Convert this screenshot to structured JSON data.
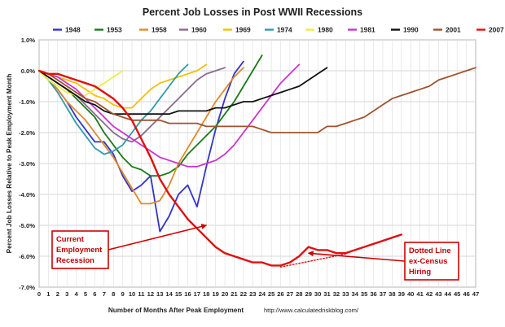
{
  "chart_data": {
    "type": "line",
    "title": "Percent Job Losses in Post WWII Recessions",
    "xlabel": "Number of Months After Peak Employment",
    "ylabel": "Percent Job Losses Relative to Peak Employment Month",
    "credit": "http://www.calculatedriskblog.com/",
    "xlim": [
      0,
      47
    ],
    "ylim": [
      -7.0,
      1.0
    ],
    "x_ticks": [
      0,
      1,
      2,
      3,
      4,
      5,
      6,
      7,
      8,
      9,
      10,
      11,
      12,
      13,
      14,
      15,
      16,
      17,
      18,
      19,
      20,
      21,
      22,
      23,
      24,
      25,
      26,
      27,
      28,
      29,
      30,
      31,
      32,
      33,
      34,
      35,
      36,
      37,
      38,
      39,
      40,
      41,
      42,
      43,
      44,
      45,
      46,
      47
    ],
    "y_ticks": [
      {
        "value": 1,
        "label": "1.0%"
      },
      {
        "value": 0,
        "label": "0.0%"
      },
      {
        "value": -1,
        "label": "-1.0%"
      },
      {
        "value": -2,
        "label": "-2.0%"
      },
      {
        "value": -3,
        "label": "-3.0%"
      },
      {
        "value": -4,
        "label": "-4.0%"
      },
      {
        "value": -5,
        "label": "-5.0%"
      },
      {
        "value": -6,
        "label": "-6.0%"
      },
      {
        "value": -7,
        "label": "-7.0%"
      }
    ],
    "grid": true,
    "legend_position": "top",
    "series": [
      {
        "name": "1948",
        "color": "#3333cc",
        "values": [
          0,
          -0.3,
          -0.6,
          -1.0,
          -1.5,
          -1.9,
          -2.3,
          -2.3,
          -2.7,
          -3.4,
          -3.9,
          -3.7,
          -3.4,
          -5.2,
          -4.7,
          -4.0,
          -3.7,
          -4.4,
          -3.1,
          -1.9,
          -0.9,
          -0.1,
          0.3
        ]
      },
      {
        "name": "1953",
        "color": "#1a7a1a",
        "values": [
          0,
          -0.2,
          -0.4,
          -0.6,
          -0.9,
          -1.2,
          -1.5,
          -2.0,
          -2.4,
          -2.8,
          -3.1,
          -3.2,
          -3.4,
          -3.4,
          -3.3,
          -3.1,
          -2.7,
          -2.4,
          -2.1,
          -1.8,
          -1.4,
          -1.0,
          -0.5,
          0.0,
          0.5
        ]
      },
      {
        "name": "1958",
        "color": "#e08a2a",
        "values": [
          0,
          -0.3,
          -0.6,
          -1.0,
          -1.3,
          -1.6,
          -2.0,
          -2.4,
          -2.8,
          -3.3,
          -3.8,
          -4.3,
          -4.3,
          -4.2,
          -3.7,
          -3.0,
          -2.5,
          -2.0,
          -1.5,
          -1.0,
          -0.6,
          -0.2,
          0.1
        ]
      },
      {
        "name": "1960",
        "color": "#8a6a8e",
        "values": [
          0,
          -0.2,
          -0.4,
          -0.6,
          -0.8,
          -1.1,
          -1.4,
          -1.7,
          -2.0,
          -2.2,
          -2.3,
          -2.1,
          -1.8,
          -1.5,
          -1.2,
          -0.9,
          -0.6,
          -0.3,
          -0.1,
          0.0,
          0.1
        ]
      },
      {
        "name": "1969",
        "color": "#f5c000",
        "values": [
          0,
          -0.1,
          -0.2,
          -0.3,
          -0.4,
          -0.6,
          -0.8,
          -0.9,
          -1.1,
          -1.2,
          -1.2,
          -0.9,
          -0.6,
          -0.4,
          -0.3,
          -0.2,
          -0.1,
          0.0,
          0.2
        ]
      },
      {
        "name": "1974",
        "color": "#3399aa",
        "values": [
          0,
          -0.3,
          -0.7,
          -1.2,
          -1.7,
          -2.1,
          -2.5,
          -2.7,
          -2.6,
          -2.4,
          -2.0,
          -1.6,
          -1.3,
          -0.9,
          -0.5,
          -0.1,
          0.2
        ]
      },
      {
        "name": "1980",
        "color": "#eeee44",
        "values": [
          0,
          -0.3,
          -0.5,
          -0.7,
          -0.8,
          -0.8,
          -0.6,
          -0.4,
          -0.2,
          0.0
        ]
      },
      {
        "name": "1981",
        "color": "#cc33cc",
        "values": [
          0,
          -0.1,
          -0.2,
          -0.4,
          -0.6,
          -0.9,
          -1.2,
          -1.5,
          -1.8,
          -2.0,
          -2.2,
          -2.4,
          -2.6,
          -2.8,
          -2.9,
          -3.0,
          -3.1,
          -3.1,
          -3.0,
          -2.9,
          -2.7,
          -2.4,
          -2.0,
          -1.6,
          -1.2,
          -0.8,
          -0.4,
          -0.1,
          0.2
        ]
      },
      {
        "name": "1990",
        "color": "#111111",
        "values": [
          0,
          -0.2,
          -0.4,
          -0.6,
          -0.8,
          -1.0,
          -1.1,
          -1.3,
          -1.4,
          -1.4,
          -1.4,
          -1.4,
          -1.4,
          -1.4,
          -1.4,
          -1.3,
          -1.3,
          -1.3,
          -1.3,
          -1.2,
          -1.2,
          -1.1,
          -1.0,
          -1.0,
          -0.9,
          -0.8,
          -0.7,
          -0.6,
          -0.5,
          -0.3,
          -0.1,
          0.1
        ]
      },
      {
        "name": "2001",
        "color": "#a0522d",
        "values": [
          0,
          -0.1,
          -0.3,
          -0.5,
          -0.7,
          -0.9,
          -1.0,
          -1.2,
          -1.4,
          -1.5,
          -1.6,
          -1.6,
          -1.6,
          -1.6,
          -1.7,
          -1.7,
          -1.7,
          -1.7,
          -1.8,
          -1.8,
          -1.8,
          -1.8,
          -1.8,
          -1.8,
          -1.9,
          -2.0,
          -2.0,
          -2.0,
          -2.0,
          -2.0,
          -2.0,
          -1.8,
          -1.8,
          -1.7,
          -1.6,
          -1.5,
          -1.3,
          -1.1,
          -0.9,
          -0.8,
          -0.7,
          -0.6,
          -0.5,
          -0.3,
          -0.2,
          -0.1,
          0.0,
          0.1
        ]
      },
      {
        "name": "2007",
        "color": "#e01010",
        "values": [
          0,
          -0.1,
          -0.1,
          -0.2,
          -0.3,
          -0.4,
          -0.5,
          -0.7,
          -0.9,
          -1.2,
          -1.6,
          -2.2,
          -2.8,
          -3.5,
          -4.0,
          -4.4,
          -4.8,
          -5.1,
          -5.4,
          -5.7,
          -5.9,
          -6.0,
          -6.1,
          -6.2,
          -6.2,
          -6.3,
          -6.3,
          -6.2,
          -6.0,
          -5.7,
          -5.8,
          -5.8,
          -5.9,
          -5.9,
          -5.8,
          -5.7,
          -5.6,
          -5.5,
          -5.4,
          -5.3
        ]
      },
      {
        "name": "",
        "color": "#e01010",
        "dotted": true,
        "x": [
          26,
          33
        ],
        "values": [
          -6.35,
          -5.93
        ]
      }
    ],
    "annotations": [
      {
        "id": "current",
        "lines": [
          "Current",
          "Employment",
          "Recession"
        ],
        "arrow_to": {
          "x": 18,
          "y": -5.0
        }
      },
      {
        "id": "dotted",
        "lines": [
          "Dotted  Line",
          "ex-Census",
          "Hiring"
        ],
        "arrow_to": {
          "x": 29,
          "y": -5.9
        }
      }
    ]
  }
}
